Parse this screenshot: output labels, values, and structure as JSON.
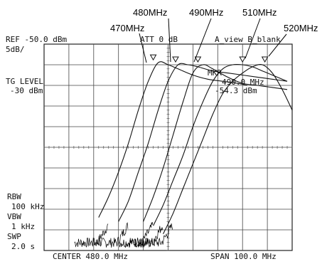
{
  "chart_data": {
    "type": "line",
    "instrument": {
      "ref_level": "REF -50.0 dBm",
      "scale": "5dB/",
      "attenuation": "ATT 0 dB",
      "view": "A_view B_blank",
      "tg_level_label": "TG LEVEL",
      "tg_level_value": "-30 dBm",
      "marker_label": "MKR",
      "marker_freq": "490.0 MHz",
      "marker_level": "-54.3 dBm",
      "rbw_label": "RBW",
      "rbw_value": "100 kHz",
      "vbw_label": "VBW",
      "vbw_value": "1 kHz",
      "swp_label": "SWP",
      "swp_value": "2.0 s",
      "center": "CENTER 480.0 MHz",
      "span": "SPAN 100.0 MHz"
    },
    "annotations": [
      "470MHz",
      "480MHz",
      "490MHz",
      "510MHz",
      "520MHz"
    ],
    "x_unit": "MHz",
    "y_unit": "dBm",
    "xlim": [
      430,
      530
    ],
    "ylim": [
      -100,
      -50
    ],
    "grid": true,
    "series": [
      {
        "annotation": "470MHz",
        "peak_x": 474,
        "x": [
          452,
          456,
          460,
          464,
          468,
          472,
          476,
          480,
          484,
          490,
          496,
          502,
          508,
          512
        ],
        "y": [
          -92,
          -87,
          -81,
          -74,
          -66,
          -59,
          -54.5,
          -55,
          -56,
          -57.5,
          -58.5,
          -59,
          -59.5,
          -60
        ]
      },
      {
        "annotation": "480MHz",
        "peak_x": 483,
        "x": [
          460,
          464,
          468,
          472,
          476,
          480,
          484,
          488,
          492,
          498,
          504,
          510,
          516,
          522,
          528
        ],
        "y": [
          -93,
          -88,
          -81,
          -74,
          -66,
          -59,
          -55,
          -55,
          -55.5,
          -56.5,
          -57,
          -57.5,
          -58,
          -58.5,
          -59
        ]
      },
      {
        "annotation": "490MHz",
        "peak_x": 492,
        "x": [
          470,
          474,
          478,
          482,
          486,
          490,
          494,
          498,
          504,
          510,
          516,
          522,
          528
        ],
        "y": [
          -93,
          -87,
          -80,
          -72,
          -64,
          -57,
          -55,
          -56,
          -58,
          -59.5,
          -60,
          -60.5,
          -61
        ]
      },
      {
        "annotation": "510MHz",
        "peak_x": 510,
        "x": [
          474,
          478,
          482,
          486,
          490,
          494,
          498,
          502,
          506,
          510,
          514,
          518,
          522,
          528
        ],
        "y": [
          -94,
          -89,
          -83,
          -77,
          -70,
          -64,
          -59,
          -56,
          -55,
          -55,
          -55.5,
          -56.5,
          -57.5,
          -59
        ]
      },
      {
        "annotation": "520MHz",
        "peak_x": 519,
        "x": [
          478,
          482,
          486,
          490,
          494,
          498,
          502,
          506,
          510,
          514,
          518,
          522,
          526,
          530
        ],
        "y": [
          -96,
          -91,
          -85,
          -79,
          -73,
          -67,
          -62,
          -59,
          -57,
          -55.5,
          -55,
          -57,
          -61,
          -66
        ]
      }
    ]
  }
}
